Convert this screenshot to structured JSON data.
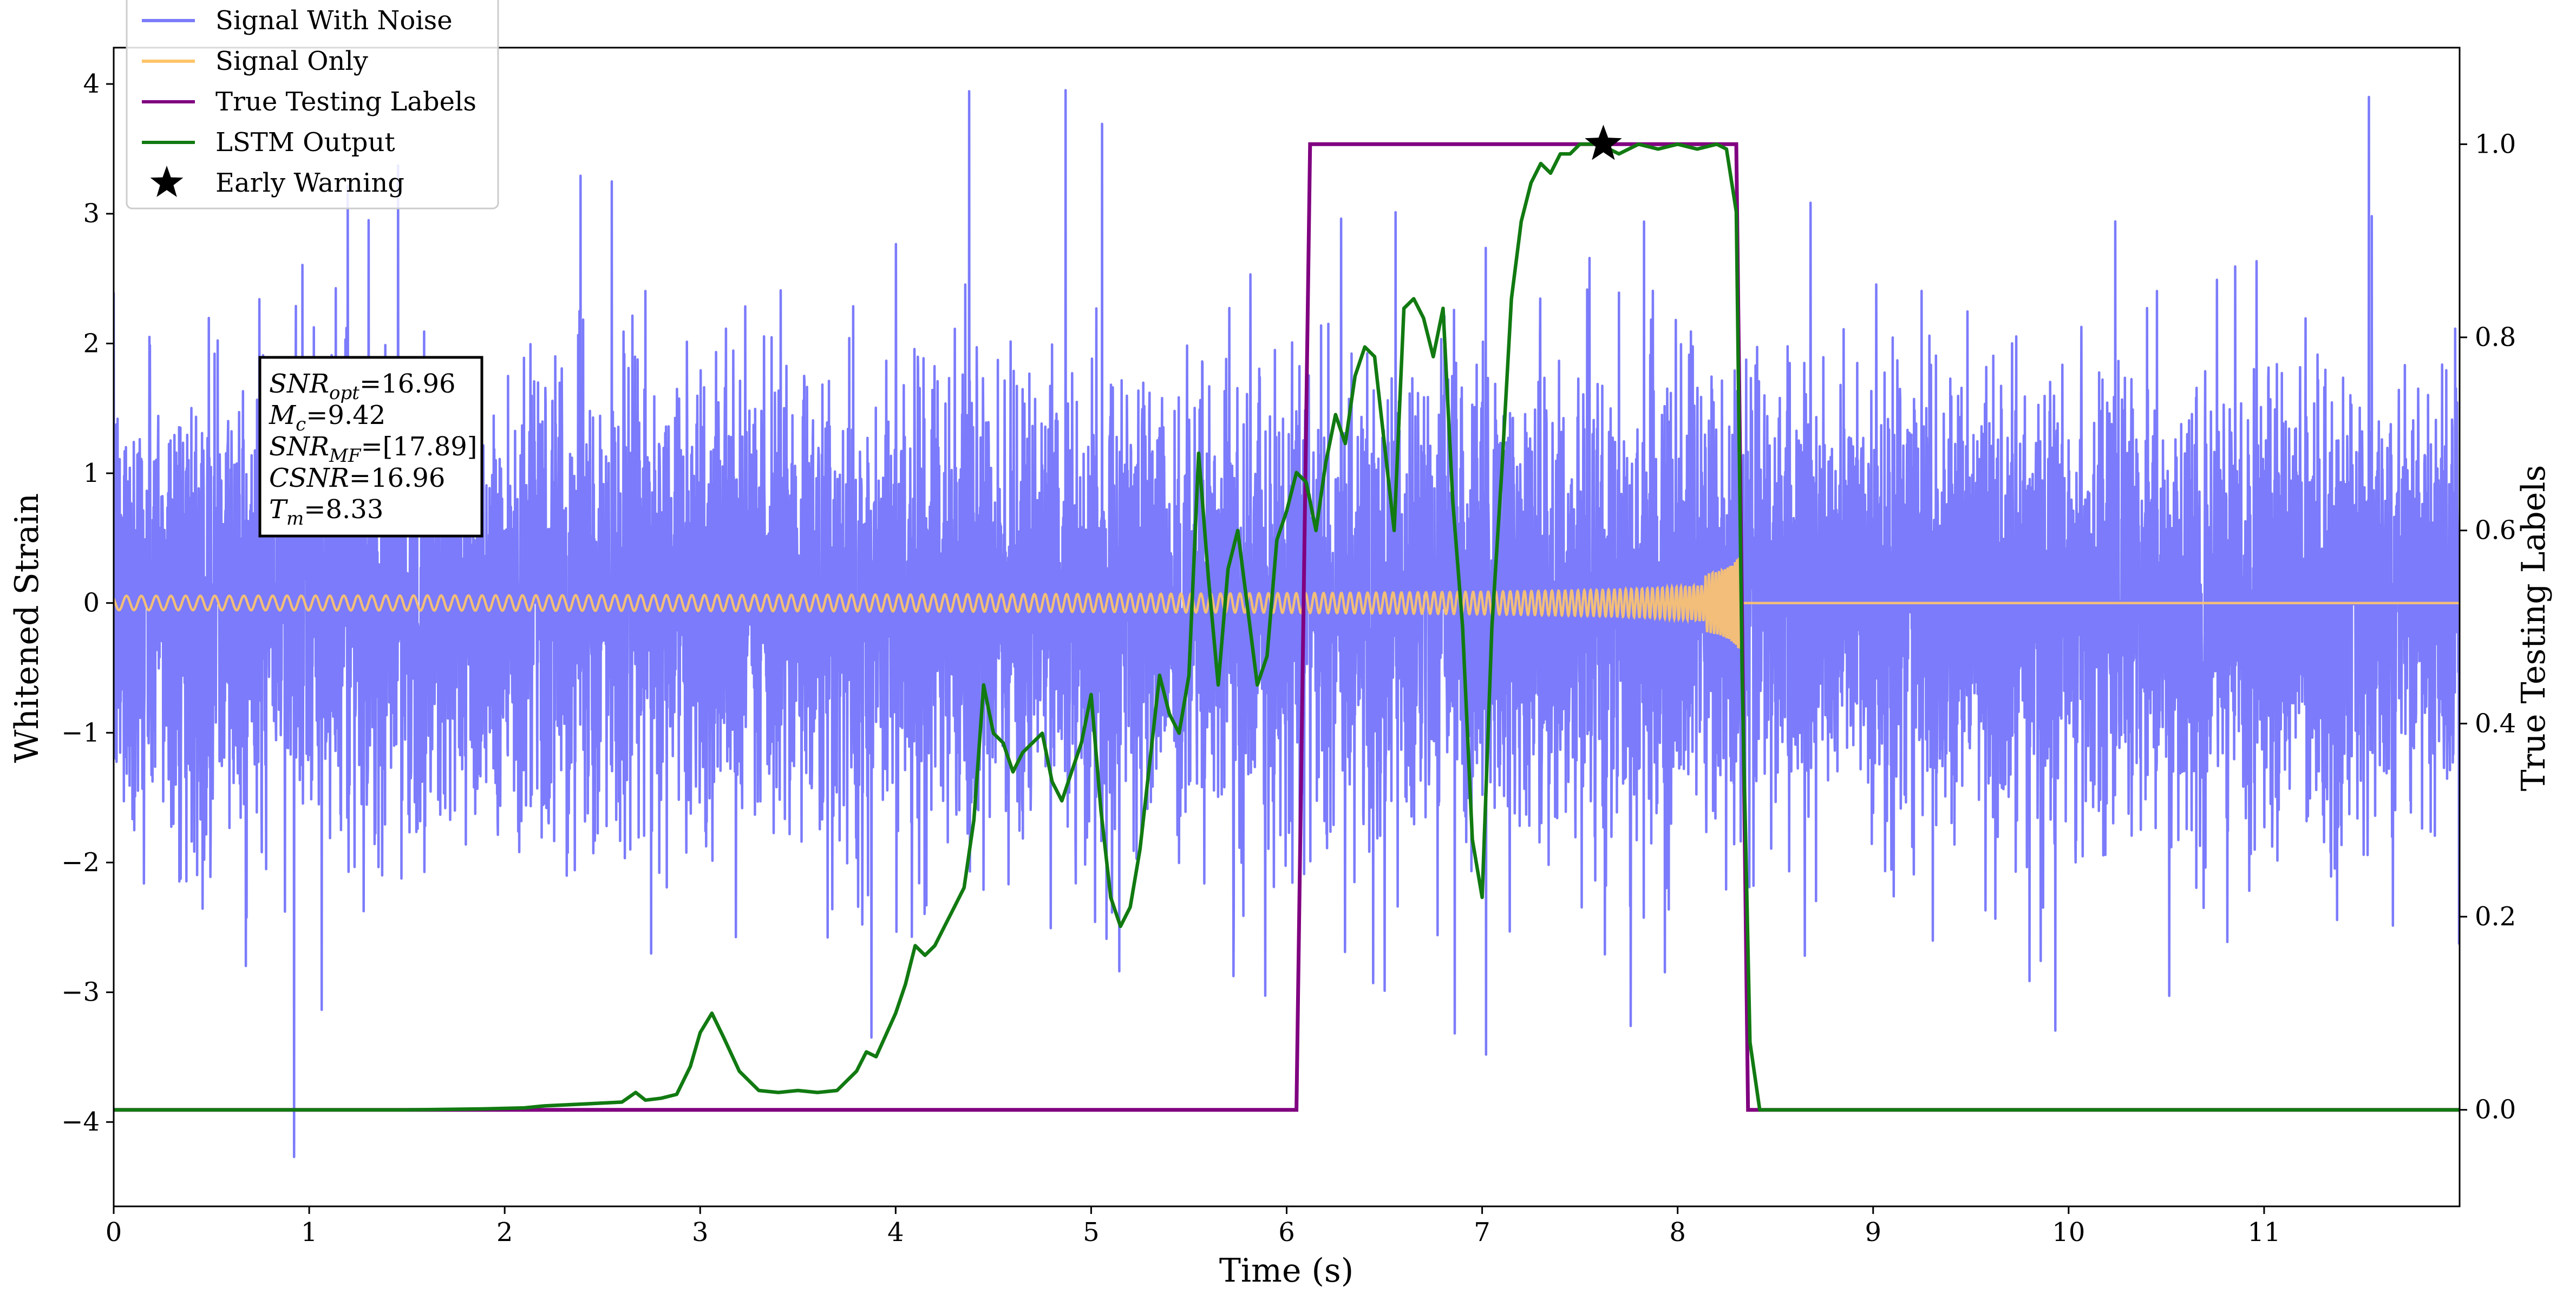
{
  "chart_data": {
    "type": "line",
    "xlabel": "Time (s)",
    "ylabel": "Whitened Strain",
    "y2label": "True Testing Labels",
    "xlim": [
      0,
      12
    ],
    "ylim": [
      -4.65,
      4.28
    ],
    "y2lim": [
      -0.1,
      1.1
    ],
    "xticks": [
      0,
      1,
      2,
      3,
      4,
      5,
      6,
      7,
      8,
      9,
      10,
      11
    ],
    "yticks": [
      -4,
      -3,
      -2,
      -1,
      0,
      1,
      2,
      3,
      4
    ],
    "y2ticks": [
      0.0,
      0.2,
      0.4,
      0.6,
      0.8,
      1.0
    ],
    "grid": false,
    "legend_position": "top-left",
    "colors": {
      "noise": "#7b7bfb",
      "signal": "#ffc56a",
      "labels": "#800080",
      "lstm": "#117a11",
      "star": "#000000"
    },
    "legend": [
      {
        "label": "Signal With Noise",
        "color": "#7b7bfb",
        "marker": "line"
      },
      {
        "label": "Signal Only",
        "color": "#ffc56a",
        "marker": "line"
      },
      {
        "label": "True Testing Labels",
        "color": "#800080",
        "marker": "line"
      },
      {
        "label": "LSTM Output",
        "color": "#117a11",
        "marker": "line"
      },
      {
        "label": "Early Warning",
        "color": "#000000",
        "marker": "star"
      }
    ],
    "annotation": {
      "lines": [
        {
          "main": "SNR",
          "sub": "opt",
          "value": "=16.96"
        },
        {
          "main": "M",
          "sub": "c",
          "value": "=9.42"
        },
        {
          "main": "SNR",
          "sub": "MF",
          "value": "=[17.89]"
        },
        {
          "main": "CSNR",
          "sub": "",
          "value": "=16.96"
        },
        {
          "main": "T",
          "sub": "m",
          "value": "=8.33"
        }
      ]
    },
    "series": [
      {
        "name": "Signal With Noise",
        "axis": "left",
        "description_noise_sigma": 0.85,
        "x_range": [
          0,
          12
        ]
      },
      {
        "name": "Signal Only",
        "axis": "left",
        "merger_time": 8.33,
        "x_range": [
          0,
          12
        ]
      },
      {
        "name": "True Testing Labels",
        "axis": "right",
        "x": [
          0,
          6.05,
          6.12,
          8.3,
          8.36,
          12
        ],
        "y": [
          0,
          0,
          1,
          1,
          0,
          0
        ]
      },
      {
        "name": "LSTM Output",
        "axis": "right",
        "x": [
          0,
          0.3,
          1.0,
          1.5,
          1.9,
          2.1,
          2.2,
          2.4,
          2.6,
          2.67,
          2.72,
          2.8,
          2.88,
          2.95,
          3.0,
          3.06,
          3.12,
          3.2,
          3.3,
          3.4,
          3.5,
          3.6,
          3.7,
          3.8,
          3.85,
          3.9,
          4.0,
          4.05,
          4.1,
          4.15,
          4.2,
          4.25,
          4.3,
          4.35,
          4.4,
          4.45,
          4.5,
          4.55,
          4.6,
          4.65,
          4.7,
          4.75,
          4.8,
          4.85,
          4.9,
          4.95,
          5.0,
          5.05,
          5.1,
          5.15,
          5.2,
          5.25,
          5.3,
          5.35,
          5.4,
          5.45,
          5.5,
          5.55,
          5.6,
          5.65,
          5.7,
          5.75,
          5.8,
          5.85,
          5.9,
          5.95,
          6.0,
          6.05,
          6.1,
          6.15,
          6.2,
          6.25,
          6.3,
          6.35,
          6.4,
          6.45,
          6.5,
          6.55,
          6.6,
          6.65,
          6.7,
          6.75,
          6.8,
          6.85,
          6.9,
          6.95,
          7.0,
          7.05,
          7.1,
          7.15,
          7.2,
          7.25,
          7.3,
          7.35,
          7.4,
          7.45,
          7.5,
          7.55,
          7.6,
          7.7,
          7.8,
          7.9,
          8.0,
          8.1,
          8.2,
          8.25,
          8.3,
          8.33,
          8.37,
          8.42,
          8.5,
          9.0,
          10.0,
          11.0,
          12.0
        ],
        "y": [
          0,
          0.0,
          0.0,
          0.0,
          0.001,
          0.002,
          0.004,
          0.006,
          0.008,
          0.018,
          0.01,
          0.012,
          0.016,
          0.045,
          0.08,
          0.1,
          0.075,
          0.04,
          0.02,
          0.018,
          0.02,
          0.018,
          0.02,
          0.04,
          0.06,
          0.055,
          0.1,
          0.13,
          0.17,
          0.16,
          0.17,
          0.19,
          0.21,
          0.23,
          0.3,
          0.44,
          0.39,
          0.38,
          0.35,
          0.37,
          0.38,
          0.39,
          0.34,
          0.32,
          0.35,
          0.38,
          0.43,
          0.31,
          0.22,
          0.19,
          0.21,
          0.27,
          0.36,
          0.45,
          0.41,
          0.39,
          0.45,
          0.68,
          0.55,
          0.44,
          0.56,
          0.6,
          0.52,
          0.44,
          0.47,
          0.59,
          0.62,
          0.66,
          0.65,
          0.6,
          0.67,
          0.72,
          0.69,
          0.76,
          0.79,
          0.78,
          0.69,
          0.6,
          0.83,
          0.84,
          0.82,
          0.78,
          0.83,
          0.63,
          0.5,
          0.28,
          0.22,
          0.5,
          0.66,
          0.84,
          0.92,
          0.96,
          0.98,
          0.97,
          0.99,
          0.99,
          1.0,
          1.0,
          1.0,
          0.99,
          1.0,
          0.995,
          1.0,
          0.995,
          1.0,
          0.995,
          0.93,
          0.45,
          0.07,
          0.0,
          0.0,
          0.0,
          0.0,
          0.0,
          0.0
        ]
      },
      {
        "name": "Early Warning",
        "axis": "right",
        "x": [
          7.62
        ],
        "y": [
          1.0
        ]
      }
    ]
  }
}
